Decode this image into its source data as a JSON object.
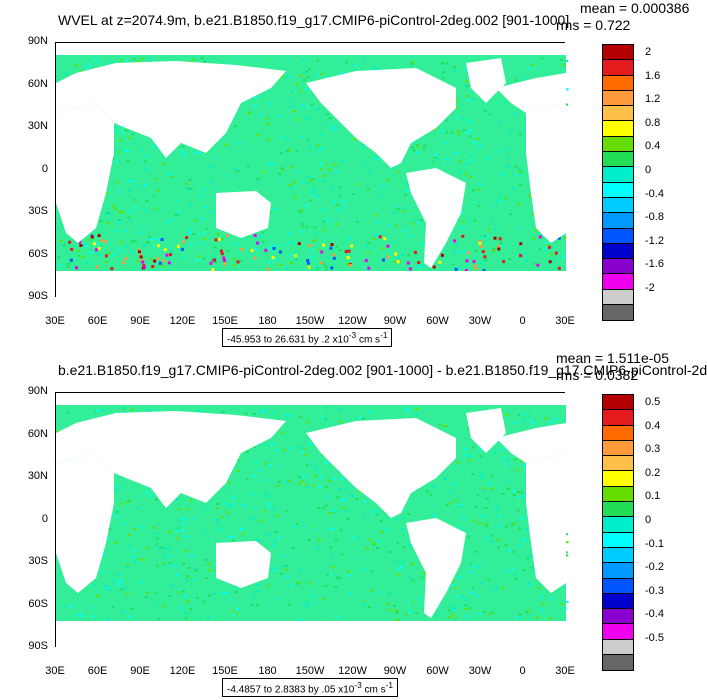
{
  "panels": [
    {
      "title": "WVEL at z=2074.9m, b.e21.B1850.f19_g17.CMIP6-piControl-2deg.002 [901-1000]",
      "mean_text": "mean = 0.000386",
      "rms_text": "rms = 0.722",
      "range_text": "-45.953 to 26.631 by .2 x10",
      "range_exp": "-3",
      "range_unit": " cm s",
      "range_unit_exp": "-1",
      "colorbar_labels": [
        "2",
        "1.6",
        "1.2",
        "0.8",
        "0.4",
        "0",
        "-0.4",
        "-0.8",
        "-1.2",
        "-1.6",
        "-2"
      ]
    },
    {
      "title": "b.e21.B1850.f19_g17.CMIP6-piControl-2deg.002 [901-1000] - b.e21.B1850.f19_g17.CMIP6-piControl-2d",
      "mean_text": "mean = 1.511e-05",
      "rms_text": "rms = 0.0382",
      "range_text": "-4.4857 to 2.8383 by .05 x10",
      "range_exp": "-3",
      "range_unit": " cm s",
      "range_unit_exp": "-1",
      "colorbar_labels": [
        "0.5",
        "0.4",
        "0.3",
        "0.2",
        "0.1",
        "0",
        "-0.1",
        "-0.2",
        "-0.3",
        "-0.4",
        "-0.5"
      ]
    }
  ],
  "axes": {
    "lat_labels": [
      "90N",
      "60N",
      "30N",
      "0",
      "30S",
      "60S",
      "90S"
    ],
    "lon_labels": [
      "30E",
      "60E",
      "90E",
      "120E",
      "150E",
      "180",
      "150W",
      "120W",
      "90W",
      "60W",
      "30W",
      "0",
      "30E"
    ]
  },
  "colorbar_colors": [
    "#b40000",
    "#e41a1c",
    "#ff6a00",
    "#ff9a3c",
    "#ffc04a",
    "#ffff00",
    "#66dd00",
    "#22dd55",
    "#00eecc",
    "#00ffff",
    "#00ccff",
    "#0099ff",
    "#0055ff",
    "#0000cc",
    "#8800cc",
    "#ee00ee",
    "#cccccc",
    "#666666"
  ],
  "ocean_color": "#33ee99"
}
